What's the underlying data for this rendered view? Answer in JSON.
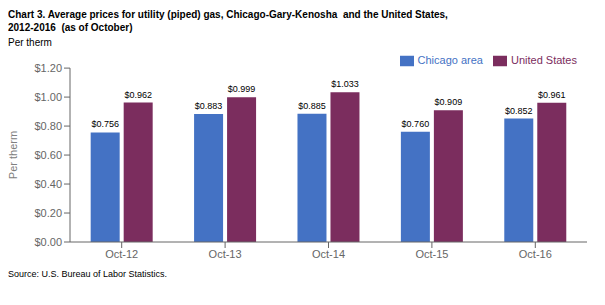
{
  "chart_data": {
    "type": "bar",
    "title": "Chart 3. Average prices for utility (piped) gas, Chicago-Gary-Kenosha  and the United States,",
    "subtitle": "2012-2016  (as of October)",
    "ylabel": "Per therm",
    "annotations": [
      "Source: U.S. Bureau of Labor Statistics."
    ],
    "categories": [
      "Oct-12",
      "Oct-13",
      "Oct-14",
      "Oct-15",
      "Oct-16"
    ],
    "series": [
      {
        "name": "Chicago area",
        "color": "#4472C4",
        "values": [
          0.756,
          0.883,
          0.885,
          0.76,
          0.852
        ],
        "value_labels": [
          "$0.756",
          "$0.883",
          "$0.885",
          "$0.760",
          "$0.852"
        ]
      },
      {
        "name": "United States",
        "color": "#7B2D5E",
        "values": [
          0.962,
          0.999,
          1.033,
          0.909,
          0.961
        ],
        "value_labels": [
          "$0.962",
          "$0.999",
          "$1.033",
          "$0.909",
          "$0.961"
        ]
      }
    ],
    "ylim": [
      0,
      1.2
    ],
    "yticks": [
      {
        "value": 0.0,
        "label": "$0.00"
      },
      {
        "value": 0.2,
        "label": "$0.20"
      },
      {
        "value": 0.4,
        "label": "$0.40"
      },
      {
        "value": 0.6,
        "label": "$0.60"
      },
      {
        "value": 0.8,
        "label": "$0.80"
      },
      {
        "value": 1.0,
        "label": "$1.00"
      },
      {
        "value": 1.2,
        "label": "$1.20"
      }
    ],
    "data_labels": true,
    "legend": "upper right",
    "grid": false
  }
}
